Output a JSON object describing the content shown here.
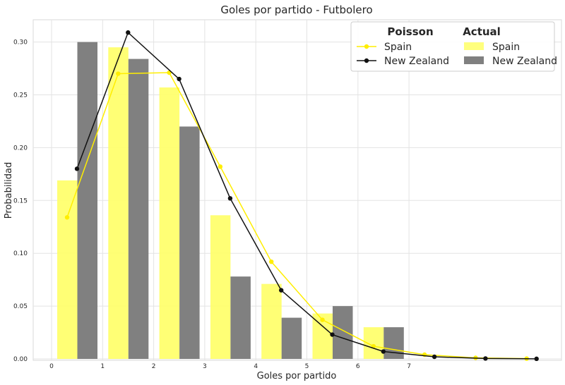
{
  "chart_data": {
    "type": "bar",
    "title": "Goles por partido - Futbolero",
    "xlabel": "Goles por partido",
    "ylabel": "Probabilidad",
    "x_ticks": [
      "0",
      "1",
      "2",
      "3",
      "4",
      "5",
      "6",
      "7"
    ],
    "y_ticks": [
      "0.00",
      "0.05",
      "0.10",
      "0.15",
      "0.20",
      "0.25",
      "0.30"
    ],
    "ylim": [
      0,
      0.325
    ],
    "grid": true,
    "legend": {
      "placement": "top-right",
      "poisson_title": "Poisson",
      "actual_title": "Actual",
      "poisson_entries": [
        "Spain",
        "New Zealand"
      ],
      "actual_entries": [
        "Spain",
        "New Zealand"
      ]
    },
    "actual": {
      "goals": [
        0,
        1,
        2,
        3,
        4,
        5,
        6
      ],
      "series": [
        {
          "name": "Spain",
          "color": "#ffff66",
          "values": [
            0.169,
            0.295,
            0.257,
            0.136,
            0.071,
            0.043,
            0.03
          ]
        },
        {
          "name": "New Zealand",
          "color": "#808080",
          "values": [
            0.3,
            0.284,
            0.22,
            0.078,
            0.039,
            0.05,
            0.03
          ]
        }
      ]
    },
    "poisson": {
      "goals": [
        0,
        1,
        2,
        3,
        4,
        5,
        6,
        7,
        8,
        9
      ],
      "series": [
        {
          "name": "Spain",
          "color": "#ffee00",
          "values": [
            0.134,
            0.27,
            0.271,
            0.182,
            0.092,
            0.037,
            0.012,
            0.004,
            0.001,
            0.0003
          ]
        },
        {
          "name": "New Zealand",
          "color": "#111111",
          "values": [
            0.18,
            0.309,
            0.265,
            0.152,
            0.065,
            0.023,
            0.007,
            0.002,
            0.0004,
            0.0001
          ]
        }
      ]
    }
  }
}
